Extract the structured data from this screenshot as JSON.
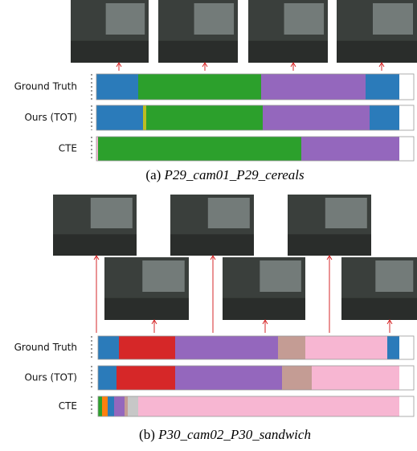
{
  "panels": [
    {
      "caption": {
        "prefix": "(a)",
        "name": "P29_cam01_P29_cereals"
      },
      "rows": [
        "Ground Truth",
        "Ours (TOT)",
        "CTE"
      ]
    },
    {
      "caption": {
        "prefix": "(b)",
        "name": "P30_cam02_P30_sandwich"
      },
      "rows": [
        "Ground Truth",
        "Ours (TOT)",
        "CTE"
      ]
    }
  ]
}
